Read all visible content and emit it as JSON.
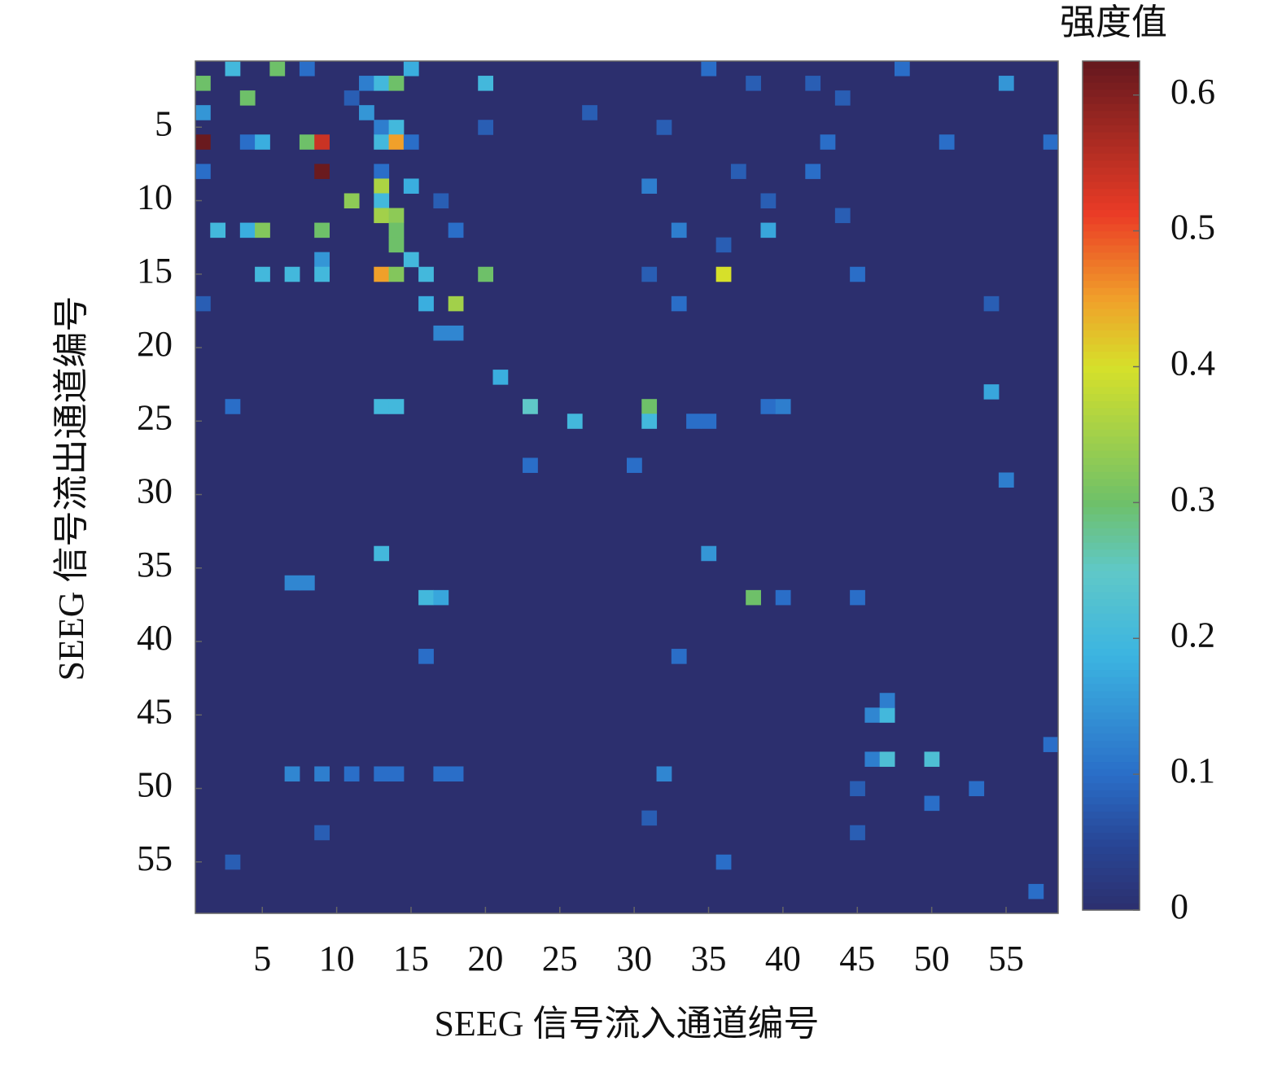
{
  "chart_data": {
    "type": "heatmap",
    "x_label": "SEEG 信号流入通道编号",
    "y_label": "SEEG 信号流出通道编号",
    "colorbar_label": "强度值",
    "xlim": [
      0.5,
      58.5
    ],
    "ylim": [
      0.5,
      58.5
    ],
    "y_reversed": true,
    "xticks": [
      5,
      10,
      15,
      20,
      25,
      30,
      35,
      40,
      45,
      50,
      55
    ],
    "yticks": [
      5,
      10,
      15,
      20,
      25,
      30,
      35,
      40,
      45,
      50,
      55
    ],
    "zlim": [
      0,
      0.625
    ],
    "zticks": [
      0,
      0.1,
      0.2,
      0.3,
      0.4,
      0.5,
      0.6
    ],
    "cells": [
      [
        3,
        1,
        0.2
      ],
      [
        6,
        1,
        0.3
      ],
      [
        15,
        1,
        0.18
      ],
      [
        8,
        1,
        0.1
      ],
      [
        48,
        1,
        0.1
      ],
      [
        35,
        1,
        0.1
      ],
      [
        1,
        2,
        0.3
      ],
      [
        12,
        2,
        0.12
      ],
      [
        13,
        2,
        0.2
      ],
      [
        14,
        2,
        0.3
      ],
      [
        20,
        2,
        0.2
      ],
      [
        38,
        2,
        0.08
      ],
      [
        42,
        2,
        0.08
      ],
      [
        55,
        2,
        0.15
      ],
      [
        4,
        3,
        0.3
      ],
      [
        11,
        3,
        0.08
      ],
      [
        44,
        3,
        0.08
      ],
      [
        1,
        4,
        0.15
      ],
      [
        12,
        4,
        0.15
      ],
      [
        27,
        4,
        0.08
      ],
      [
        13,
        5,
        0.12
      ],
      [
        14,
        5,
        0.2
      ],
      [
        20,
        5,
        0.08
      ],
      [
        32,
        5,
        0.08
      ],
      [
        1,
        6,
        0.62
      ],
      [
        4,
        6,
        0.1
      ],
      [
        5,
        6,
        0.18
      ],
      [
        8,
        6,
        0.3
      ],
      [
        9,
        6,
        0.54
      ],
      [
        13,
        6,
        0.2
      ],
      [
        14,
        6,
        0.45
      ],
      [
        15,
        6,
        0.1
      ],
      [
        43,
        6,
        0.1
      ],
      [
        51,
        6,
        0.1
      ],
      [
        58,
        6,
        0.1
      ],
      [
        1,
        8,
        0.1
      ],
      [
        9,
        8,
        0.62
      ],
      [
        13,
        8,
        0.1
      ],
      [
        37,
        8,
        0.08
      ],
      [
        42,
        8,
        0.1
      ],
      [
        13,
        9,
        0.36
      ],
      [
        15,
        9,
        0.18
      ],
      [
        31,
        9,
        0.12
      ],
      [
        11,
        10,
        0.33
      ],
      [
        13,
        10,
        0.2
      ],
      [
        17,
        10,
        0.08
      ],
      [
        39,
        10,
        0.08
      ],
      [
        13,
        11,
        0.35
      ],
      [
        14,
        11,
        0.33
      ],
      [
        44,
        11,
        0.08
      ],
      [
        2,
        12,
        0.2
      ],
      [
        4,
        12,
        0.18
      ],
      [
        5,
        12,
        0.32
      ],
      [
        9,
        12,
        0.3
      ],
      [
        14,
        12,
        0.3
      ],
      [
        33,
        12,
        0.12
      ],
      [
        39,
        12,
        0.17
      ],
      [
        18,
        12,
        0.1
      ],
      [
        14,
        13,
        0.3
      ],
      [
        36,
        13,
        0.08
      ],
      [
        9,
        14,
        0.15
      ],
      [
        15,
        14,
        0.2
      ],
      [
        5,
        15,
        0.2
      ],
      [
        7,
        15,
        0.2
      ],
      [
        9,
        15,
        0.2
      ],
      [
        13,
        15,
        0.45
      ],
      [
        14,
        15,
        0.32
      ],
      [
        16,
        15,
        0.2
      ],
      [
        20,
        15,
        0.3
      ],
      [
        36,
        15,
        0.4
      ],
      [
        31,
        15,
        0.08
      ],
      [
        45,
        15,
        0.1
      ],
      [
        16,
        17,
        0.18
      ],
      [
        18,
        17,
        0.35
      ],
      [
        1,
        17,
        0.08
      ],
      [
        33,
        17,
        0.1
      ],
      [
        54,
        17,
        0.08
      ],
      [
        17,
        19,
        0.13
      ],
      [
        18,
        19,
        0.13
      ],
      [
        21,
        22,
        0.18
      ],
      [
        54,
        23,
        0.17
      ],
      [
        3,
        24,
        0.1
      ],
      [
        13,
        24,
        0.2
      ],
      [
        14,
        24,
        0.2
      ],
      [
        23,
        24,
        0.25
      ],
      [
        31,
        24,
        0.3
      ],
      [
        39,
        24,
        0.1
      ],
      [
        40,
        24,
        0.12
      ],
      [
        26,
        25,
        0.2
      ],
      [
        31,
        25,
        0.2
      ],
      [
        34,
        25,
        0.1
      ],
      [
        35,
        25,
        0.1
      ],
      [
        23,
        28,
        0.1
      ],
      [
        30,
        28,
        0.1
      ],
      [
        55,
        29,
        0.12
      ],
      [
        13,
        34,
        0.2
      ],
      [
        35,
        34,
        0.15
      ],
      [
        7,
        36,
        0.13
      ],
      [
        8,
        36,
        0.13
      ],
      [
        16,
        37,
        0.2
      ],
      [
        17,
        37,
        0.17
      ],
      [
        38,
        37,
        0.3
      ],
      [
        40,
        37,
        0.1
      ],
      [
        45,
        37,
        0.1
      ],
      [
        16,
        41,
        0.1
      ],
      [
        33,
        41,
        0.1
      ],
      [
        46,
        45,
        0.13
      ],
      [
        47,
        45,
        0.2
      ],
      [
        47,
        44,
        0.12
      ],
      [
        46,
        48,
        0.12
      ],
      [
        47,
        48,
        0.22
      ],
      [
        50,
        48,
        0.22
      ],
      [
        7,
        49,
        0.13
      ],
      [
        9,
        49,
        0.12
      ],
      [
        11,
        49,
        0.1
      ],
      [
        13,
        49,
        0.1
      ],
      [
        14,
        49,
        0.1
      ],
      [
        17,
        49,
        0.1
      ],
      [
        18,
        49,
        0.1
      ],
      [
        32,
        49,
        0.13
      ],
      [
        50,
        51,
        0.1
      ],
      [
        53,
        50,
        0.1
      ],
      [
        45,
        50,
        0.08
      ],
      [
        31,
        52,
        0.08
      ],
      [
        45,
        53,
        0.08
      ],
      [
        9,
        53,
        0.08
      ],
      [
        36,
        55,
        0.1
      ],
      [
        3,
        55,
        0.08
      ],
      [
        57,
        57,
        0.1
      ],
      [
        58,
        47,
        0.1
      ]
    ]
  }
}
